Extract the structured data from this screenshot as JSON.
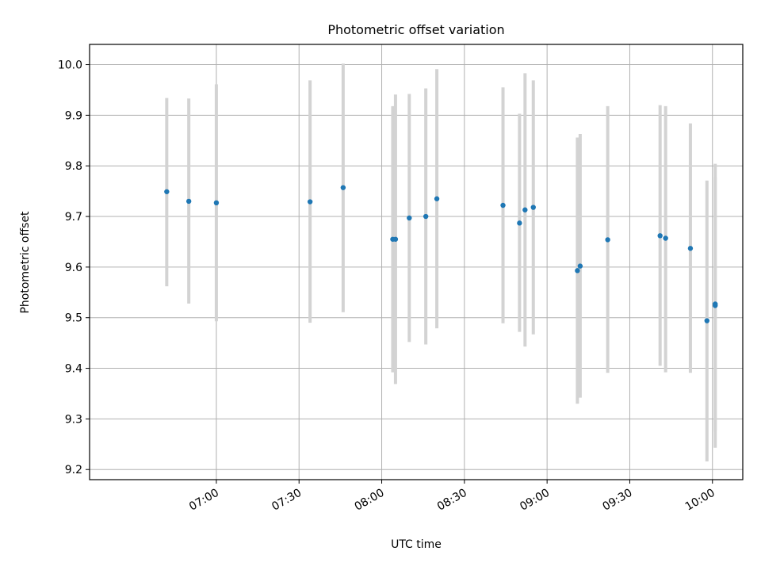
{
  "chart_data": {
    "type": "scatter",
    "title": "Photometric offset variation",
    "xlabel": "UTC time",
    "ylabel": "Photometric offset",
    "x_is_time": true,
    "xlim": [
      "06:14",
      "10:11"
    ],
    "ylim": [
      9.18,
      10.04
    ],
    "xticks": [
      "07:00",
      "07:30",
      "08:00",
      "08:30",
      "09:00",
      "09:30",
      "10:00"
    ],
    "yticks": [
      9.2,
      9.3,
      9.4,
      9.5,
      9.6,
      9.7,
      9.8,
      9.9,
      10.0
    ],
    "ytick_labels": [
      "9.2",
      "9.3",
      "9.4",
      "9.5",
      "9.6",
      "9.7",
      "9.8",
      "9.9",
      "10.0"
    ],
    "grid": true,
    "marker_color": "#1f77b4",
    "errorbar_color": "#d3d3d3",
    "series": [
      {
        "points": [
          {
            "x": "06:42",
            "y": 9.749,
            "yerr_low": 9.562,
            "yerr_high": 9.934
          },
          {
            "x": "06:50",
            "y": 9.73,
            "yerr_low": 9.528,
            "yerr_high": 9.933
          },
          {
            "x": "07:00",
            "y": 9.727,
            "yerr_low": 9.493,
            "yerr_high": 9.961
          },
          {
            "x": "07:34",
            "y": 9.729,
            "yerr_low": 9.49,
            "yerr_high": 9.969
          },
          {
            "x": "07:46",
            "y": 9.757,
            "yerr_low": 9.511,
            "yerr_high": 10.002
          },
          {
            "x": "08:04",
            "y": 9.655,
            "yerr_low": 9.392,
            "yerr_high": 9.918
          },
          {
            "x": "08:05",
            "y": 9.655,
            "yerr_low": 9.369,
            "yerr_high": 9.941
          },
          {
            "x": "08:10",
            "y": 9.697,
            "yerr_low": 9.452,
            "yerr_high": 9.942
          },
          {
            "x": "08:16",
            "y": 9.7,
            "yerr_low": 9.447,
            "yerr_high": 9.953
          },
          {
            "x": "08:20",
            "y": 9.735,
            "yerr_low": 9.479,
            "yerr_high": 9.991
          },
          {
            "x": "08:44",
            "y": 9.722,
            "yerr_low": 9.489,
            "yerr_high": 9.955
          },
          {
            "x": "08:50",
            "y": 9.687,
            "yerr_low": 9.472,
            "yerr_high": 9.903
          },
          {
            "x": "08:52",
            "y": 9.713,
            "yerr_low": 9.443,
            "yerr_high": 9.983
          },
          {
            "x": "08:55",
            "y": 9.718,
            "yerr_low": 9.467,
            "yerr_high": 9.969
          },
          {
            "x": "09:11",
            "y": 9.593,
            "yerr_low": 9.33,
            "yerr_high": 9.856
          },
          {
            "x": "09:12",
            "y": 9.602,
            "yerr_low": 9.342,
            "yerr_high": 9.863
          },
          {
            "x": "09:22",
            "y": 9.654,
            "yerr_low": 9.391,
            "yerr_high": 9.918
          },
          {
            "x": "09:41",
            "y": 9.662,
            "yerr_low": 9.405,
            "yerr_high": 9.92
          },
          {
            "x": "09:43",
            "y": 9.657,
            "yerr_low": 9.392,
            "yerr_high": 9.918
          },
          {
            "x": "09:52",
            "y": 9.637,
            "yerr_low": 9.391,
            "yerr_high": 9.884
          },
          {
            "x": "09:58",
            "y": 9.494,
            "yerr_low": 9.216,
            "yerr_high": 9.771
          },
          {
            "x": "10:01",
            "y": 9.527,
            "yerr_low": 9.276,
            "yerr_high": 9.778
          },
          {
            "x": "10:01",
            "y": 9.524,
            "yerr_low": 9.243,
            "yerr_high": 9.804
          }
        ]
      }
    ]
  }
}
